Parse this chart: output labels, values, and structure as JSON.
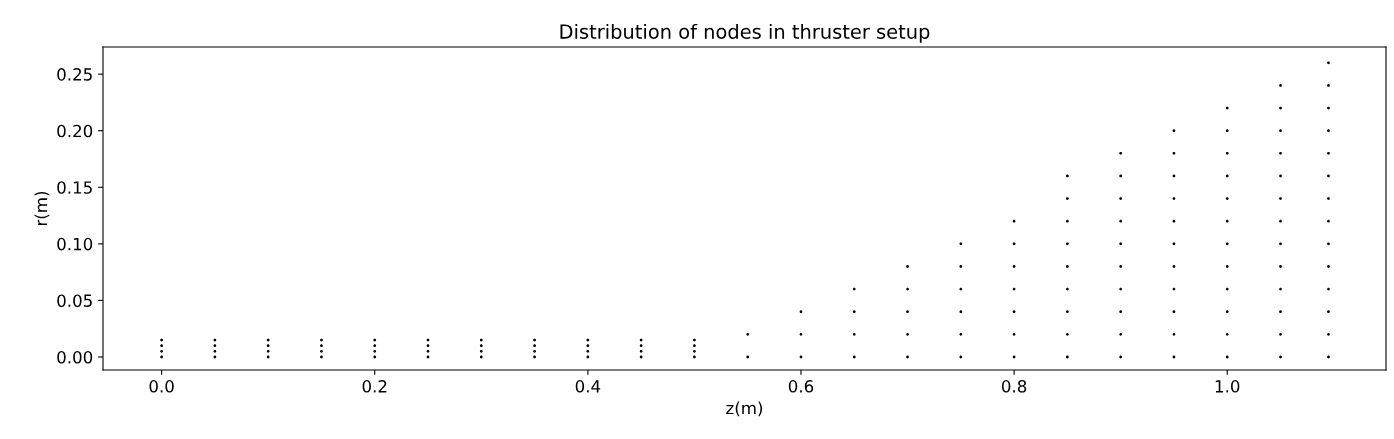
{
  "chart_data": {
    "type": "scatter",
    "title": "Distribution of nodes in thruster setup",
    "xlabel": "z(m)",
    "ylabel": "r(m)",
    "series": [
      {
        "color": "#000000",
        "x": [
          0,
          0,
          0,
          0,
          0.05,
          0.05,
          0.05,
          0.05,
          0.1,
          0.1,
          0.1,
          0.1,
          0.15,
          0.15,
          0.15,
          0.15,
          0.2,
          0.2,
          0.2,
          0.2,
          0.25,
          0.25,
          0.25,
          0.25,
          0.3,
          0.3,
          0.3,
          0.3,
          0.35,
          0.35,
          0.35,
          0.35,
          0.4,
          0.4,
          0.4,
          0.4,
          0.45,
          0.45,
          0.45,
          0.45,
          0.5,
          0.5,
          0.5,
          0.5,
          0.55,
          0.55,
          0.6,
          0.6,
          0.6,
          0.65,
          0.65,
          0.65,
          0.65,
          0.7,
          0.7,
          0.7,
          0.7,
          0.7,
          0.75,
          0.75,
          0.75,
          0.75,
          0.75,
          0.75,
          0.8,
          0.8,
          0.8,
          0.8,
          0.8,
          0.8,
          0.8,
          0.85,
          0.85,
          0.85,
          0.85,
          0.85,
          0.85,
          0.85,
          0.85,
          0.85,
          0.9,
          0.9,
          0.9,
          0.9,
          0.9,
          0.9,
          0.9,
          0.9,
          0.9,
          0.9,
          0.95,
          0.95,
          0.95,
          0.95,
          0.95,
          0.95,
          0.95,
          0.95,
          0.95,
          0.95,
          0.95,
          1.0,
          1.0,
          1.0,
          1.0,
          1.0,
          1.0,
          1.0,
          1.0,
          1.0,
          1.0,
          1.0,
          1.0,
          1.05,
          1.05,
          1.05,
          1.05,
          1.05,
          1.05,
          1.05,
          1.05,
          1.05,
          1.05,
          1.05,
          1.05,
          1.05,
          1.095,
          1.095,
          1.095,
          1.095,
          1.095,
          1.095,
          1.095,
          1.095,
          1.095,
          1.095,
          1.095,
          1.095,
          1.095,
          1.095
        ],
        "values": [
          0,
          0.005,
          0.01,
          0.015,
          0,
          0.005,
          0.01,
          0.015,
          0,
          0.005,
          0.01,
          0.015,
          0,
          0.005,
          0.01,
          0.015,
          0,
          0.005,
          0.01,
          0.015,
          0,
          0.005,
          0.01,
          0.015,
          0,
          0.005,
          0.01,
          0.015,
          0,
          0.005,
          0.01,
          0.015,
          0,
          0.005,
          0.01,
          0.015,
          0,
          0.005,
          0.01,
          0.015,
          0,
          0.005,
          0.01,
          0.015,
          0,
          0.02,
          0,
          0.02,
          0.04,
          0,
          0.02,
          0.04,
          0.06,
          0,
          0.02,
          0.04,
          0.06,
          0.08,
          0,
          0.02,
          0.04,
          0.06,
          0.08,
          0.1,
          0,
          0.02,
          0.04,
          0.06,
          0.08,
          0.1,
          0.12,
          0,
          0.02,
          0.04,
          0.06,
          0.08,
          0.1,
          0.12,
          0.14,
          0.16,
          0,
          0.02,
          0.04,
          0.06,
          0.08,
          0.1,
          0.12,
          0.14,
          0.16,
          0.18,
          0,
          0.02,
          0.04,
          0.06,
          0.08,
          0.1,
          0.12,
          0.14,
          0.16,
          0.18,
          0.2,
          0,
          0.02,
          0.04,
          0.06,
          0.08,
          0.1,
          0.12,
          0.14,
          0.16,
          0.18,
          0.2,
          0.22,
          0,
          0.02,
          0.04,
          0.06,
          0.08,
          0.1,
          0.12,
          0.14,
          0.16,
          0.18,
          0.2,
          0.22,
          0.24,
          0,
          0.02,
          0.04,
          0.06,
          0.08,
          0.1,
          0.12,
          0.14,
          0.16,
          0.18,
          0.2,
          0.22,
          0.24,
          0.26
        ]
      }
    ],
    "marker": "circle",
    "grid": false,
    "xlim": [
      -0.055,
      1.149
    ],
    "xticks": [
      {
        "value": 0,
        "label": "0.0"
      },
      {
        "value": 0.2,
        "label": "0.2"
      },
      {
        "value": 0.4,
        "label": "0.4"
      },
      {
        "value": 0.6,
        "label": "0.6"
      },
      {
        "value": 0.8,
        "label": "0.8"
      },
      {
        "value": 1.0,
        "label": "1.0"
      }
    ],
    "ylim": [
      -0.0115,
      0.274
    ],
    "yticks": [
      {
        "value": 0,
        "label": "0.00"
      },
      {
        "value": 0.05,
        "label": "0.05"
      },
      {
        "value": 0.1,
        "label": "0.10"
      },
      {
        "value": 0.15,
        "label": "0.15"
      },
      {
        "value": 0.2,
        "label": "0.20"
      },
      {
        "value": 0.25,
        "label": "0.25"
      }
    ]
  }
}
